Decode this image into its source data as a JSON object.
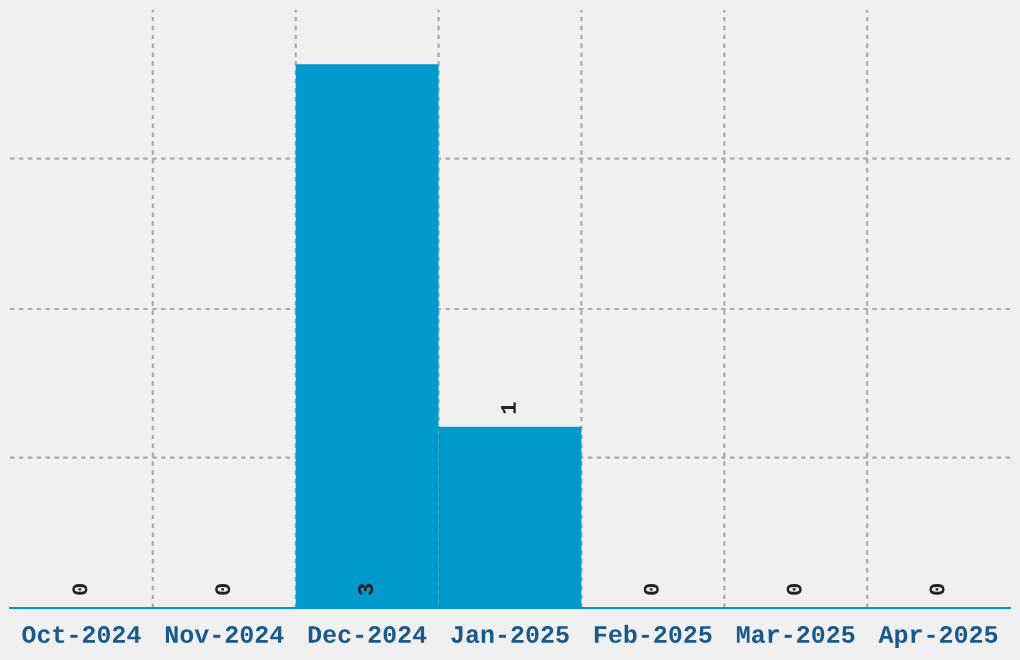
{
  "chart_data": {
    "type": "bar",
    "categories": [
      "Oct-2024",
      "Nov-2024",
      "Dec-2024",
      "Jan-2025",
      "Feb-2025",
      "Mar-2025",
      "Apr-2025"
    ],
    "values": [
      0,
      0,
      3,
      1,
      0,
      0,
      0
    ],
    "color": "#0099cc",
    "data_labels": true,
    "grid": true,
    "tick_labels": "x",
    "ylim": [
      0,
      3.3
    ],
    "yticks": [
      {
        "value": 0.83,
        "label": null
      },
      {
        "value": 1.65,
        "label": null
      },
      {
        "value": 2.48,
        "label": null
      }
    ]
  }
}
